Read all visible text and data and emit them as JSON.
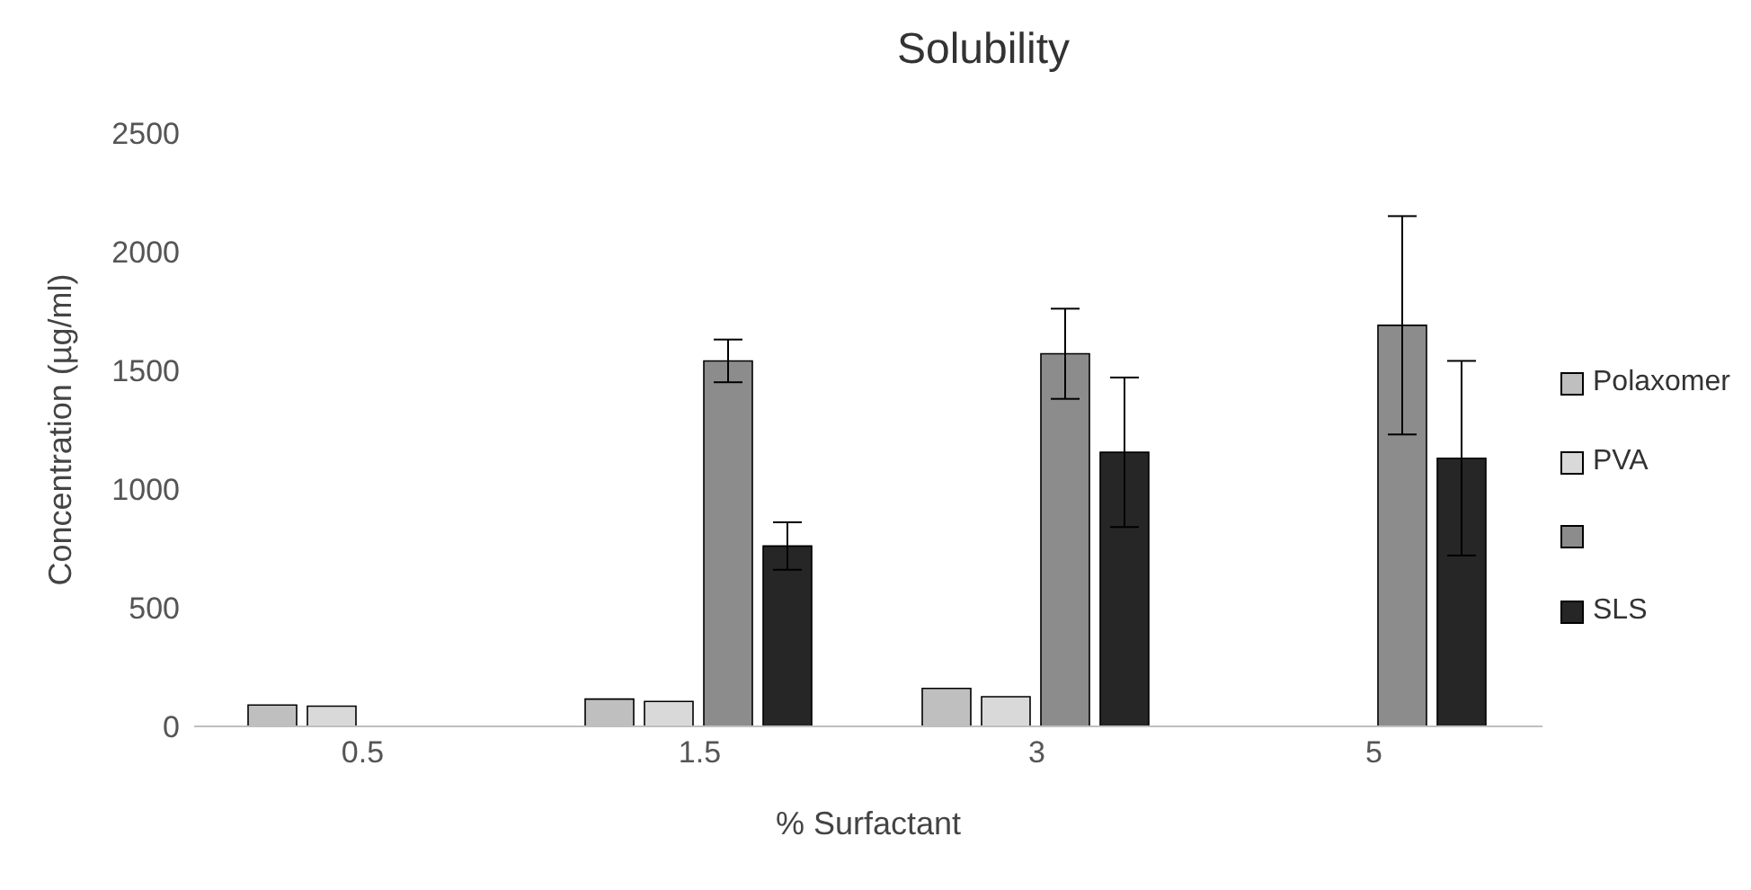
{
  "chart_data": {
    "type": "bar",
    "title": "Solubility",
    "xlabel": "% Surfactant",
    "ylabel": "Concentration (µg/ml)",
    "categories": [
      "0.5",
      "1.5",
      "3",
      "5"
    ],
    "series": [
      {
        "name": "Polaxomer",
        "color": "#bfbfbf",
        "values": [
          90,
          115,
          160,
          null
        ]
      },
      {
        "name": "PVA",
        "color": "#d9d9d9",
        "values": [
          85,
          105,
          125,
          null
        ]
      },
      {
        "color": "#8c8c8c",
        "values": [
          null,
          1540,
          1570,
          1690
        ],
        "errors": [
          null,
          90,
          190,
          460
        ]
      },
      {
        "name": "SLS",
        "color": "#262626",
        "values": [
          null,
          760,
          1155,
          1130
        ],
        "errors": [
          null,
          100,
          315,
          410
        ]
      }
    ],
    "ylim": [
      0,
      2500
    ],
    "yticks": [
      0,
      500,
      1000,
      1500,
      2000,
      2500
    ],
    "grid": false,
    "legend": "right"
  }
}
